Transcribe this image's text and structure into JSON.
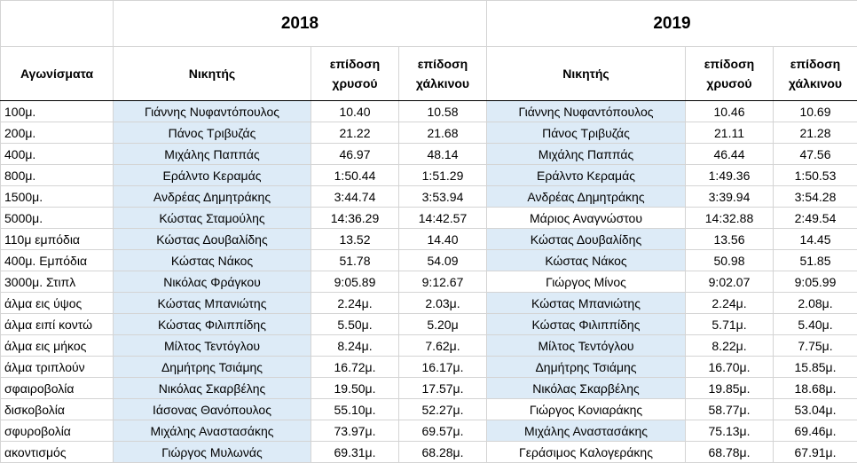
{
  "years": [
    "2018",
    "2019"
  ],
  "table": {
    "header": [
      "Αγωνίσματα",
      "Νικητής",
      "επίδοση χρυσού",
      "επίδοση χάλκινου",
      "Νικητής",
      "επίδοση χρυσού",
      "επίδοση χάλκινου"
    ],
    "rows": [
      [
        "100μ.",
        "Γιάννης Νυφαντόπουλος",
        "10.40",
        "10.58",
        "Γιάννης Νυφαντόπουλος",
        "10.46",
        "10.69"
      ],
      [
        "200μ.",
        "Πάνος Τριβυζάς",
        "21.22",
        "21.68",
        "Πάνος Τριβυζάς",
        "21.11",
        "21.28"
      ],
      [
        "400μ.",
        "Μιχάλης Παππάς",
        "46.97",
        "48.14",
        "Μιχάλης Παππάς",
        "46.44",
        "47.56"
      ],
      [
        "800μ.",
        "Εράλντο Κεραμάς",
        "1:50.44",
        "1:51.29",
        "Εράλντο Κεραμάς",
        "1:49.36",
        "1:50.53"
      ],
      [
        "1500μ.",
        "Ανδρέας Δημητράκης",
        "3:44.74",
        "3:53.94",
        "Ανδρέας Δημητράκης",
        "3:39.94",
        "3:54.28"
      ],
      [
        "5000μ.",
        "Κώστας Σταμούλης",
        "14:36.29",
        "14:42.57",
        "Μάριος Αναγνώστου",
        "14:32.88",
        "2:49.54"
      ],
      [
        "110μ εμπόδια",
        "Κώστας Δουβαλίδης",
        "13.52",
        "14.40",
        "Κώστας Δουβαλίδης",
        "13.56",
        "14.45"
      ],
      [
        "400μ. Εμπόδια",
        "Κώστας Νάκος",
        "51.78",
        "54.09",
        "Κώστας Νάκος",
        "50.98",
        "51.85"
      ],
      [
        "3000μ. Στιπλ",
        "Νικόλας Φράγκου",
        "9:05.89",
        "9:12.67",
        "Γιώργος Μίνος",
        "9:02.07",
        "9:05.99"
      ],
      [
        "άλμα εις ύψος",
        "Κώστας Μπανιώτης",
        "2.24μ.",
        "2.03μ.",
        "Κώστας Μπανιώτης",
        "2.24μ.",
        "2.08μ."
      ],
      [
        "άλμα ειπί κοντώ",
        "Κώστας Φιλιππίδης",
        "5.50μ.",
        "5.20μ",
        "Κώστας Φιλιππίδης",
        "5.71μ.",
        "5.40μ."
      ],
      [
        "άλμα εις μήκος",
        "Μίλτος Τεντόγλου",
        "8.24μ.",
        "7.62μ.",
        "Μίλτος Τεντόγλου",
        "8.22μ.",
        "7.75μ."
      ],
      [
        "άλμα τριπλούν",
        "Δημήτρης Τσιάμης",
        "16.72μ.",
        "16.17μ.",
        "Δημήτρης Τσιάμης",
        "16.70μ.",
        "15.85μ."
      ],
      [
        "σφαιροβολία",
        "Νικόλας Σκαρβέλης",
        "19.50μ.",
        "17.57μ.",
        "Νικόλας Σκαρβέλης",
        "19.85μ.",
        "18.68μ."
      ],
      [
        "δισκοβολία",
        "Ιάσονας Θανόπουλος",
        "55.10μ.",
        "52.27μ.",
        "Γιώργος Κονιαράκης",
        "58.77μ.",
        "53.04μ."
      ],
      [
        "σφυροβολία",
        "Μιχάλης Αναστασάκης",
        "73.97μ.",
        "69.57μ.",
        "Μιχάλης Αναστασάκης",
        "75.13μ.",
        "69.46μ."
      ],
      [
        "ακοντισμός",
        "Γιώργος Μυλωνάς",
        "69.31μ.",
        "68.28μ.",
        "Γεράσιμος Καλογεράκης",
        "68.78μ.",
        "67.91μ."
      ]
    ]
  }
}
